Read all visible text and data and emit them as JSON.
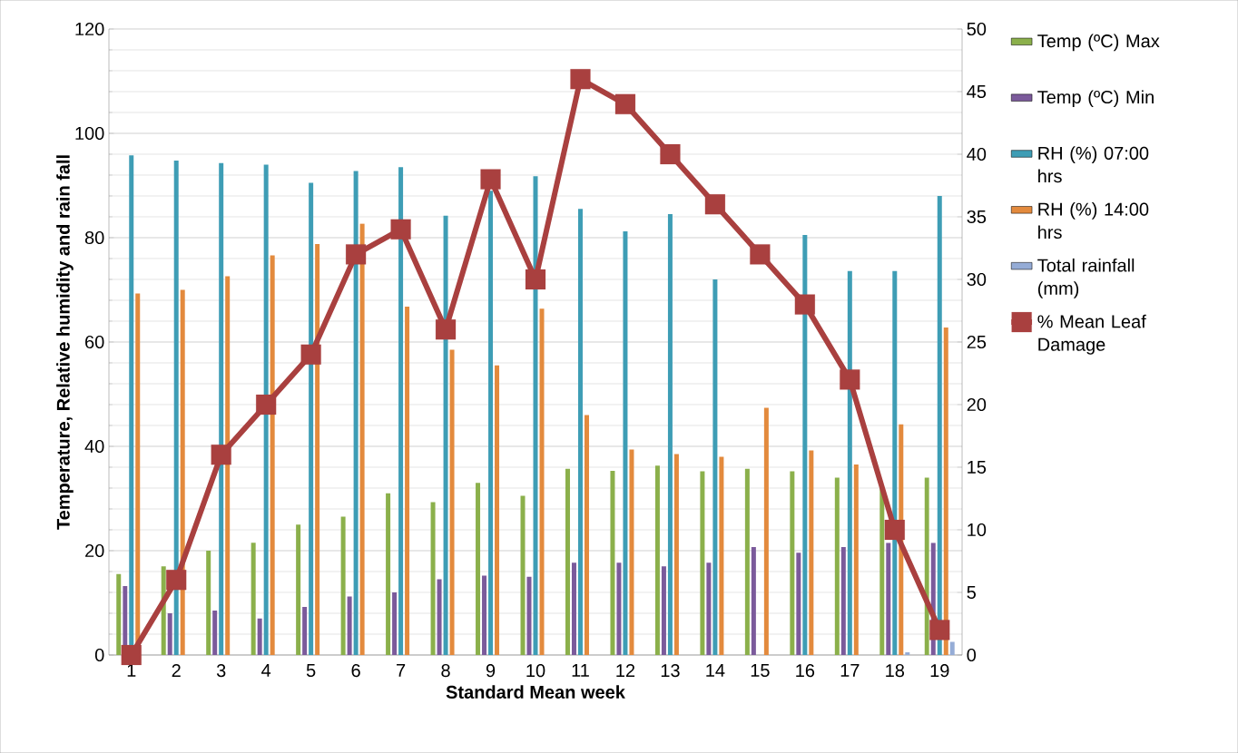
{
  "chart_data": {
    "type": "bar",
    "xlabel": "Standard Mean week",
    "ylabel": "Temperature, Relative humidity and rain fall",
    "categories": [
      "1",
      "2",
      "3",
      "4",
      "5",
      "6",
      "7",
      "8",
      "9",
      "10",
      "11",
      "12",
      "13",
      "14",
      "15",
      "16",
      "17",
      "18",
      "19"
    ],
    "series": [
      {
        "name": "Temp (ºC) Max",
        "color": "#8bb04b",
        "values": [
          15.5,
          17,
          20,
          21.5,
          25,
          26.5,
          31,
          29.3,
          33,
          30.5,
          35.7,
          35.3,
          36.3,
          35.2,
          35.7,
          35.2,
          34,
          32,
          34
        ]
      },
      {
        "name": "Temp (ºC) Min",
        "color": "#7b5a9b",
        "values": [
          13.2,
          8,
          8.5,
          7,
          9.2,
          11.2,
          12,
          14.5,
          15.2,
          15,
          17.7,
          17.7,
          17,
          17.7,
          20.7,
          19.6,
          20.7,
          21.5,
          21.5
        ]
      },
      {
        "name": "RH (%) 07:00 hrs",
        "color": "#3e9db5",
        "values": [
          95.8,
          94.8,
          94.3,
          94,
          90.5,
          92.8,
          93.5,
          84.2,
          89,
          91.8,
          85.5,
          81.2,
          84.5,
          72,
          null,
          80.5,
          73.6,
          73.6,
          88
        ]
      },
      {
        "name": "RH (%) 14:00 hrs",
        "color": "#e38a3d",
        "values": [
          69.3,
          70,
          72.6,
          76.6,
          78.8,
          82.7,
          66.8,
          58.5,
          55.5,
          66.4,
          46,
          39.4,
          38.5,
          38,
          47.4,
          39.2,
          36.5,
          44.2,
          62.8
        ]
      },
      {
        "name": "Total rainfall (mm)",
        "color": "#95acd6",
        "values": [
          0,
          0,
          0,
          0,
          0,
          0,
          0,
          0,
          0,
          0,
          0,
          0,
          0,
          0,
          0,
          0,
          0,
          0.5,
          2.5
        ]
      },
      {
        "name": "% Mean Leaf Damage",
        "color": "#a9403f",
        "type": "line",
        "axis": "y2",
        "marker": "square",
        "values": [
          0,
          6,
          16,
          20,
          24,
          32,
          34,
          26,
          38,
          30,
          46,
          44,
          40,
          36,
          32,
          28,
          22,
          10,
          2
        ]
      }
    ],
    "ylim": [
      0,
      120
    ],
    "yticks": [
      0,
      20,
      40,
      60,
      80,
      100,
      120
    ],
    "y2lim": [
      0,
      50
    ],
    "y2ticks": [
      0,
      5,
      10,
      15,
      20,
      25,
      30,
      35,
      40,
      45,
      50
    ],
    "grid": "y",
    "legend": "right"
  }
}
